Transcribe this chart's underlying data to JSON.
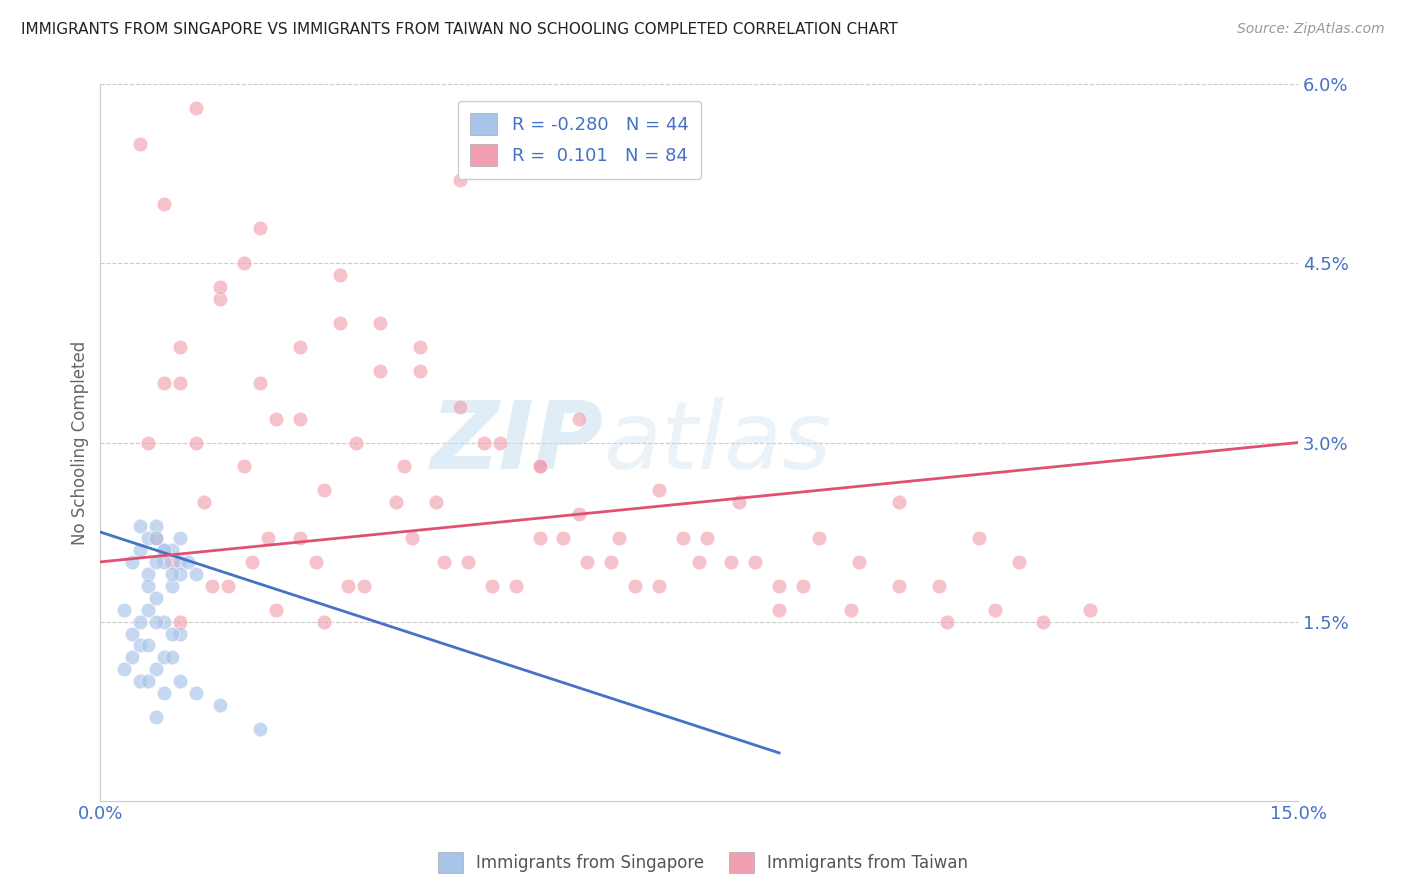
{
  "title": "IMMIGRANTS FROM SINGAPORE VS IMMIGRANTS FROM TAIWAN NO SCHOOLING COMPLETED CORRELATION CHART",
  "source": "Source: ZipAtlas.com",
  "ylabel": "No Schooling Completed",
  "xlim": [
    0.0,
    0.15
  ],
  "ylim": [
    0.0,
    0.06
  ],
  "yticks": [
    0.0,
    0.015,
    0.03,
    0.045,
    0.06
  ],
  "ytick_labels": [
    "",
    "1.5%",
    "3.0%",
    "4.5%",
    "6.0%"
  ],
  "xticks": [
    0.0,
    0.15
  ],
  "xtick_labels": [
    "0.0%",
    "15.0%"
  ],
  "grid_color": "#cccccc",
  "background_color": "#ffffff",
  "singapore": {
    "name": "Immigrants from Singapore",
    "R": -0.28,
    "N": 44,
    "fill_color": "#a8c4e8",
    "x": [
      0.005,
      0.008,
      0.01,
      0.012,
      0.006,
      0.009,
      0.007,
      0.011,
      0.01,
      0.008,
      0.004,
      0.006,
      0.009,
      0.007,
      0.005,
      0.008,
      0.01,
      0.006,
      0.007,
      0.009,
      0.003,
      0.005,
      0.007,
      0.004,
      0.006,
      0.008,
      0.01,
      0.005,
      0.007,
      0.009,
      0.004,
      0.006,
      0.008,
      0.003,
      0.005,
      0.007,
      0.009,
      0.01,
      0.012,
      0.006,
      0.008,
      0.015,
      0.007,
      0.02
    ],
    "y": [
      0.023,
      0.021,
      0.02,
      0.019,
      0.022,
      0.021,
      0.023,
      0.02,
      0.022,
      0.021,
      0.02,
      0.019,
      0.018,
      0.022,
      0.021,
      0.02,
      0.019,
      0.018,
      0.02,
      0.019,
      0.016,
      0.015,
      0.017,
      0.014,
      0.016,
      0.015,
      0.014,
      0.013,
      0.015,
      0.014,
      0.012,
      0.013,
      0.012,
      0.011,
      0.01,
      0.011,
      0.012,
      0.01,
      0.009,
      0.01,
      0.009,
      0.008,
      0.007,
      0.006
    ],
    "trend_x": [
      0.0,
      0.085
    ],
    "trend_y": [
      0.0225,
      0.004
    ]
  },
  "taiwan": {
    "name": "Immigrants from Taiwan",
    "R": 0.101,
    "N": 84,
    "fill_color": "#f0a0b0",
    "x": [
      0.005,
      0.012,
      0.018,
      0.008,
      0.015,
      0.02,
      0.025,
      0.01,
      0.03,
      0.035,
      0.04,
      0.045,
      0.006,
      0.01,
      0.015,
      0.02,
      0.025,
      0.03,
      0.035,
      0.04,
      0.045,
      0.05,
      0.055,
      0.06,
      0.008,
      0.012,
      0.018,
      0.022,
      0.028,
      0.032,
      0.038,
      0.042,
      0.048,
      0.055,
      0.06,
      0.065,
      0.07,
      0.075,
      0.08,
      0.085,
      0.09,
      0.095,
      0.1,
      0.105,
      0.11,
      0.115,
      0.007,
      0.013,
      0.019,
      0.025,
      0.031,
      0.037,
      0.043,
      0.049,
      0.055,
      0.061,
      0.067,
      0.073,
      0.079,
      0.085,
      0.009,
      0.014,
      0.021,
      0.027,
      0.033,
      0.039,
      0.046,
      0.052,
      0.058,
      0.064,
      0.07,
      0.076,
      0.082,
      0.088,
      0.094,
      0.1,
      0.106,
      0.112,
      0.118,
      0.124,
      0.01,
      0.016,
      0.022,
      0.028
    ],
    "y": [
      0.055,
      0.058,
      0.045,
      0.05,
      0.042,
      0.048,
      0.038,
      0.035,
      0.044,
      0.04,
      0.036,
      0.052,
      0.03,
      0.038,
      0.043,
      0.035,
      0.032,
      0.04,
      0.036,
      0.038,
      0.033,
      0.03,
      0.028,
      0.032,
      0.035,
      0.03,
      0.028,
      0.032,
      0.026,
      0.03,
      0.028,
      0.025,
      0.03,
      0.028,
      0.024,
      0.022,
      0.026,
      0.02,
      0.025,
      0.018,
      0.022,
      0.02,
      0.025,
      0.018,
      0.022,
      0.02,
      0.022,
      0.025,
      0.02,
      0.022,
      0.018,
      0.025,
      0.02,
      0.018,
      0.022,
      0.02,
      0.018,
      0.022,
      0.02,
      0.016,
      0.02,
      0.018,
      0.022,
      0.02,
      0.018,
      0.022,
      0.02,
      0.018,
      0.022,
      0.02,
      0.018,
      0.022,
      0.02,
      0.018,
      0.016,
      0.018,
      0.015,
      0.016,
      0.015,
      0.016,
      0.015,
      0.018,
      0.016,
      0.015
    ],
    "trend_x": [
      0.0,
      0.15
    ],
    "trend_y": [
      0.02,
      0.03
    ]
  },
  "legend": {
    "R1": "-0.280",
    "N1": "44",
    "R2": " 0.101",
    "N2": "84"
  },
  "watermark_zip": "ZIP",
  "watermark_atlas": "atlas",
  "title_fontsize": 11,
  "axis_label_color": "#4472c4"
}
